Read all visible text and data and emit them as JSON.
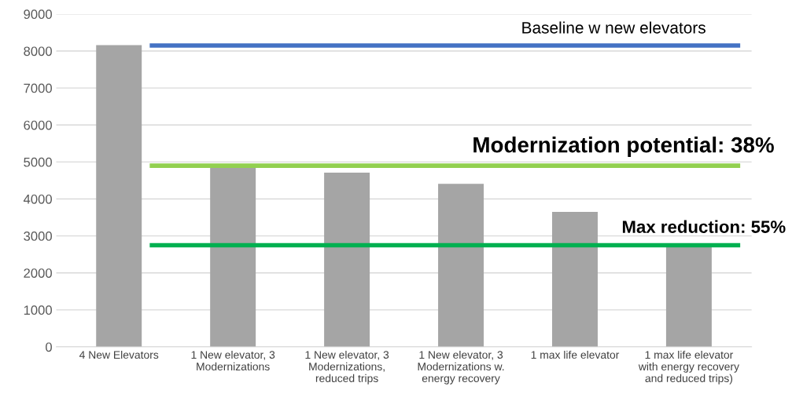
{
  "chart_data": {
    "type": "bar",
    "categories": [
      "4 New Elevators",
      "1 New elevator, 3\nModernizations",
      "1 New elevator, 3\nModernizations,\nreduced trips",
      "1 New elevator, 3\nModernizations w.\nenergy recovery",
      "1 max life elevator",
      "1 max life elevator\nwith energy recovery\nand reduced trips)"
    ],
    "values": [
      8160,
      4840,
      4710,
      4410,
      3650,
      2750
    ],
    "color": "#a5a5a5",
    "ylim": [
      0,
      9000
    ],
    "yticks": [
      0,
      1000,
      2000,
      3000,
      4000,
      5000,
      6000,
      7000,
      8000,
      9000
    ],
    "grid": "y",
    "ref_lines": [
      {
        "axis": "y",
        "value": 8150,
        "label": "Baseline w new elevators",
        "color": "#4472c4"
      },
      {
        "axis": "y",
        "value": 4900,
        "color": "#92d050"
      },
      {
        "axis": "y",
        "value": 2750,
        "color": "#00b050"
      }
    ],
    "annotations": [
      {
        "text": "Modernization potential: 38%",
        "y": 4900
      },
      {
        "text": "Max reduction: 55%",
        "y": 2750
      }
    ]
  }
}
